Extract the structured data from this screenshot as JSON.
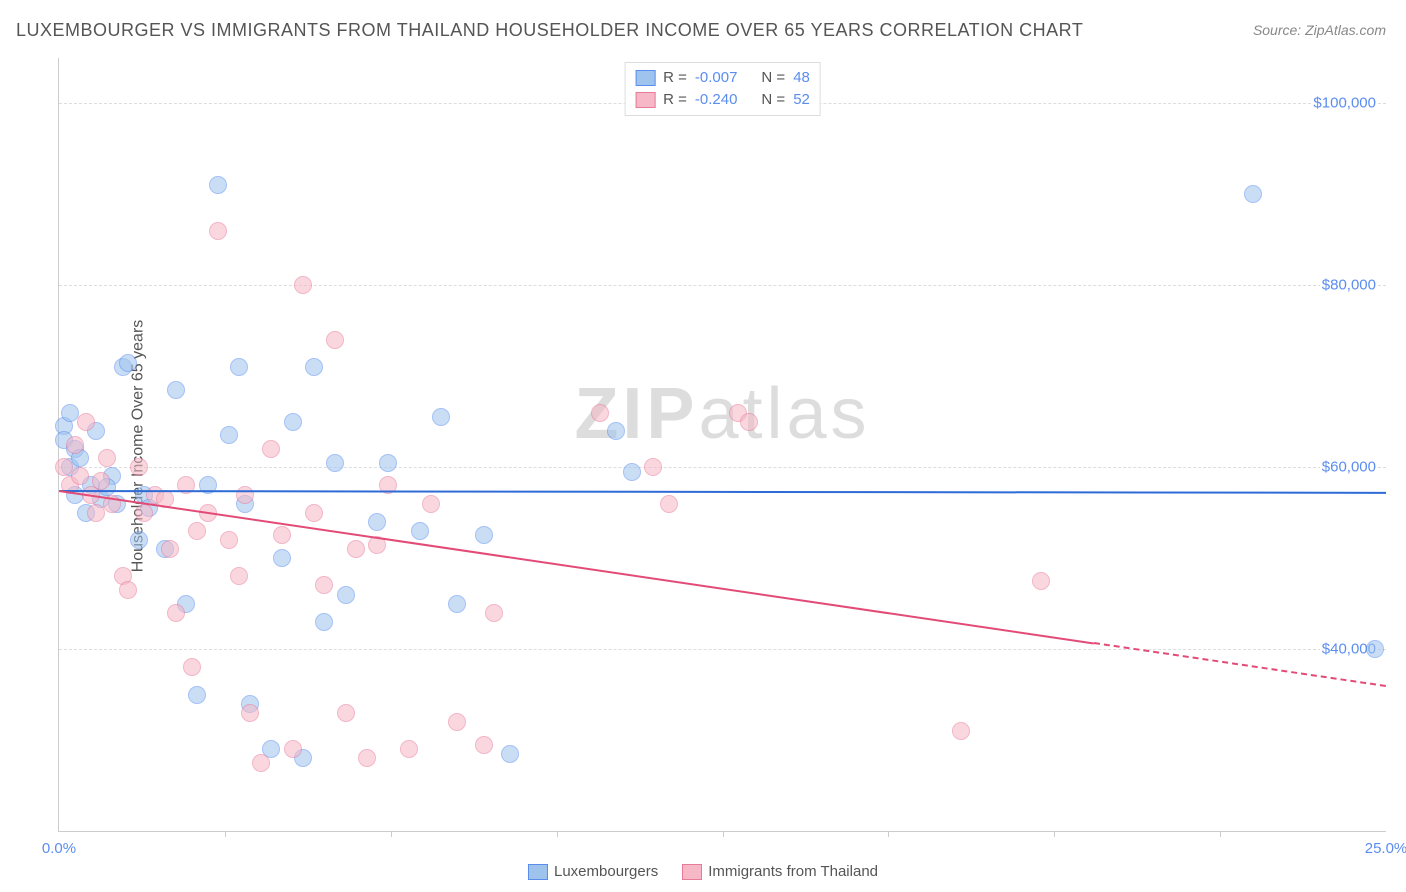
{
  "title": "LUXEMBOURGER VS IMMIGRANTS FROM THAILAND HOUSEHOLDER INCOME OVER 65 YEARS CORRELATION CHART",
  "source": "Source: ZipAtlas.com",
  "ylabel": "Householder Income Over 65 years",
  "watermark_a": "ZIP",
  "watermark_b": "atlas",
  "chart": {
    "type": "scatter",
    "xlim": [
      0,
      25
    ],
    "ylim": [
      20000,
      105000
    ],
    "yticks": [
      40000,
      60000,
      80000,
      100000
    ],
    "ytick_labels": [
      "$40,000",
      "$60,000",
      "$80,000",
      "$100,000"
    ],
    "xticks": [
      0,
      25
    ],
    "xtick_labels": [
      "0.0%",
      "25.0%"
    ],
    "xminor_ticks": [
      3.125,
      6.25,
      9.375,
      12.5,
      15.625,
      18.75,
      21.875
    ],
    "grid_color": "#dddddd",
    "background_color": "#ffffff",
    "axis_color": "#cccccc",
    "marker_radius": 8,
    "marker_opacity": 0.55,
    "series": [
      {
        "name": "Luxembourgers",
        "color_fill": "#9ec4ee",
        "color_stroke": "#5b8def",
        "R": "-0.007",
        "N": "48",
        "trend": {
          "y_at_x0": 57500,
          "y_at_xmax": 57300,
          "color": "#2f6bd6",
          "width": 2
        },
        "points": [
          [
            0.1,
            64500
          ],
          [
            0.1,
            63000
          ],
          [
            0.2,
            66000
          ],
          [
            0.3,
            62000
          ],
          [
            0.2,
            60000
          ],
          [
            0.4,
            61000
          ],
          [
            0.3,
            57000
          ],
          [
            0.5,
            55000
          ],
          [
            0.6,
            58000
          ],
          [
            0.8,
            56500
          ],
          [
            1.0,
            59000
          ],
          [
            1.2,
            71000
          ],
          [
            1.3,
            71500
          ],
          [
            1.5,
            52000
          ],
          [
            1.6,
            57000
          ],
          [
            1.7,
            55500
          ],
          [
            2.0,
            51000
          ],
          [
            2.2,
            68500
          ],
          [
            2.4,
            45000
          ],
          [
            2.6,
            35000
          ],
          [
            2.8,
            58000
          ],
          [
            3.0,
            91000
          ],
          [
            3.2,
            63500
          ],
          [
            3.4,
            71000
          ],
          [
            3.5,
            56000
          ],
          [
            3.6,
            34000
          ],
          [
            0.7,
            64000
          ],
          [
            4.0,
            29000
          ],
          [
            4.2,
            50000
          ],
          [
            4.4,
            65000
          ],
          [
            4.6,
            28000
          ],
          [
            4.8,
            71000
          ],
          [
            5.0,
            43000
          ],
          [
            5.2,
            60500
          ],
          [
            5.4,
            46000
          ],
          [
            6.0,
            54000
          ],
          [
            6.2,
            60500
          ],
          [
            6.8,
            53000
          ],
          [
            7.2,
            65500
          ],
          [
            7.5,
            45000
          ],
          [
            8.0,
            52500
          ],
          [
            8.5,
            28500
          ],
          [
            10.5,
            64000
          ],
          [
            10.8,
            59500
          ],
          [
            24.8,
            40000
          ],
          [
            22.5,
            90000
          ],
          [
            0.9,
            57800
          ],
          [
            1.1,
            56000
          ]
        ]
      },
      {
        "name": "Immigrants from Thailand",
        "color_fill": "#f6b8c6",
        "color_stroke": "#e87a9a",
        "R": "-0.240",
        "N": "52",
        "trend": {
          "y_at_x0": 57500,
          "y_at_xmax": 36000,
          "color": "#e34b77",
          "width": 2,
          "dash_after_x": 19.5
        },
        "points": [
          [
            0.1,
            60000
          ],
          [
            0.2,
            58000
          ],
          [
            0.3,
            62500
          ],
          [
            0.4,
            59000
          ],
          [
            0.5,
            65000
          ],
          [
            0.6,
            57000
          ],
          [
            0.7,
            55000
          ],
          [
            0.8,
            58500
          ],
          [
            0.9,
            61000
          ],
          [
            1.0,
            56000
          ],
          [
            1.2,
            48000
          ],
          [
            1.3,
            46500
          ],
          [
            1.5,
            60000
          ],
          [
            1.6,
            55000
          ],
          [
            1.8,
            57000
          ],
          [
            2.0,
            56500
          ],
          [
            2.1,
            51000
          ],
          [
            2.2,
            44000
          ],
          [
            2.4,
            58000
          ],
          [
            2.5,
            38000
          ],
          [
            2.6,
            53000
          ],
          [
            2.8,
            55000
          ],
          [
            3.0,
            86000
          ],
          [
            3.2,
            52000
          ],
          [
            3.4,
            48000
          ],
          [
            3.5,
            57000
          ],
          [
            3.6,
            33000
          ],
          [
            3.8,
            27500
          ],
          [
            4.0,
            62000
          ],
          [
            4.2,
            52500
          ],
          [
            4.4,
            29000
          ],
          [
            4.6,
            80000
          ],
          [
            4.8,
            55000
          ],
          [
            5.0,
            47000
          ],
          [
            5.2,
            74000
          ],
          [
            5.4,
            33000
          ],
          [
            5.6,
            51000
          ],
          [
            5.8,
            28000
          ],
          [
            6.0,
            51500
          ],
          [
            6.2,
            58000
          ],
          [
            6.6,
            29000
          ],
          [
            7.0,
            56000
          ],
          [
            7.5,
            32000
          ],
          [
            8.0,
            29500
          ],
          [
            8.2,
            44000
          ],
          [
            10.2,
            66000
          ],
          [
            11.2,
            60000
          ],
          [
            11.5,
            56000
          ],
          [
            12.8,
            66000
          ],
          [
            13.0,
            65000
          ],
          [
            17.0,
            31000
          ],
          [
            18.5,
            47500
          ]
        ]
      }
    ]
  },
  "legend_bottom": [
    "Luxembourgers",
    "Immigrants from Thailand"
  ]
}
